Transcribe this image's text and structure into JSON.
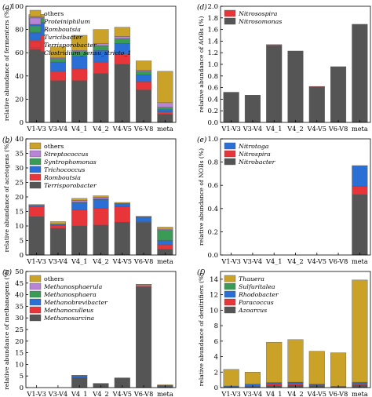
{
  "chart_data": [
    {
      "id": "a",
      "type": "bar",
      "stacked": true,
      "panel_label": "(a)",
      "ylabel": "relative abundance of fermenters (%)",
      "ylim": [
        0,
        100
      ],
      "yticks": [
        0,
        20,
        40,
        60,
        80,
        100
      ],
      "categories": [
        "V1-V3",
        "V3-V4",
        "V4_1",
        "V4_2",
        "V4-V5",
        "V6-V8",
        "meta"
      ],
      "series": [
        {
          "name": "Clostridium_sensu_stricto_1",
          "italic": true,
          "color": "#555555",
          "values": [
            61,
            36,
            36,
            42,
            50,
            28,
            7
          ]
        },
        {
          "name": "Terrisporobacter",
          "italic": true,
          "color": "#e8353a",
          "values": [
            14,
            8,
            10,
            10,
            9,
            7,
            2
          ]
        },
        {
          "name": "Turicibacter",
          "italic": true,
          "color": "#2a6fd6",
          "values": [
            11,
            8,
            11,
            10,
            9,
            6,
            2
          ]
        },
        {
          "name": "Romboutsia",
          "italic": true,
          "color": "#3a9b57",
          "values": [
            4,
            3,
            4,
            4,
            4,
            3,
            2
          ]
        },
        {
          "name": "Proteiniphilum",
          "italic": true,
          "color": "#b784d6",
          "values": [
            1,
            1,
            1,
            2,
            2,
            1,
            4
          ]
        },
        {
          "name": "others",
          "italic": false,
          "color": "#c9a227",
          "values": [
            2,
            9,
            13,
            12,
            8,
            8,
            27
          ]
        }
      ],
      "legend_position": "top-left"
    },
    {
      "id": "b",
      "type": "bar",
      "stacked": true,
      "panel_label": "(b)",
      "ylabel": "relative abundance of acetogens (%)",
      "ylim": [
        0,
        40
      ],
      "yticks": [
        0,
        5,
        10,
        15,
        20,
        25,
        30,
        35,
        40
      ],
      "categories": [
        "V1-V3",
        "V3-V4",
        "V4_1",
        "V4_2",
        "V4-V5",
        "V6-V8",
        "meta"
      ],
      "series": [
        {
          "name": "Terrisporobacter",
          "italic": true,
          "color": "#555555",
          "values": [
            13.2,
            9.2,
            10.0,
            10.3,
            11.3,
            11.2,
            2.0
          ]
        },
        {
          "name": "Romboutsia",
          "italic": true,
          "color": "#e8353a",
          "values": [
            3.5,
            1.0,
            5.5,
            5.8,
            5.3,
            0.2,
            1.5
          ]
        },
        {
          "name": "Trichococcus",
          "italic": true,
          "color": "#2a6fd6",
          "values": [
            0.3,
            0.3,
            2.5,
            3.0,
            1.0,
            1.7,
            1.5
          ]
        },
        {
          "name": "Syntrophomonas",
          "italic": true,
          "color": "#3a9b57",
          "values": [
            0.0,
            0.0,
            0.2,
            0.3,
            0.0,
            0.0,
            3.5
          ]
        },
        {
          "name": "Streptococcus",
          "italic": true,
          "color": "#b784d6",
          "values": [
            0.2,
            0.2,
            0.6,
            0.5,
            0.2,
            0.1,
            0.4
          ]
        },
        {
          "name": "others",
          "italic": false,
          "color": "#c9a227",
          "values": [
            0.2,
            0.8,
            0.7,
            0.5,
            0.3,
            0.1,
            0.7
          ]
        }
      ],
      "legend_position": "top-left"
    },
    {
      "id": "c",
      "type": "bar",
      "stacked": true,
      "panel_label": "(c)",
      "ylabel": "relative abundance of methanogens (%)",
      "ylim": [
        0,
        50
      ],
      "yticks": [
        0,
        5,
        10,
        15,
        20,
        25,
        30,
        35,
        40,
        45,
        50
      ],
      "categories": [
        "V1-V3",
        "V3-V4",
        "V4_1",
        "V4_2",
        "V4-V5",
        "V6-V8",
        "meta"
      ],
      "series": [
        {
          "name": "Methanosarcina",
          "italic": true,
          "color": "#555555",
          "values": [
            0.0,
            0.0,
            4.2,
            1.4,
            4.2,
            43.2,
            0.4
          ]
        },
        {
          "name": "Methanoculleus",
          "italic": true,
          "color": "#e8353a",
          "values": [
            0.0,
            0.0,
            0.1,
            0.1,
            0.0,
            0.6,
            0.1
          ]
        },
        {
          "name": "Methanobrevibacter",
          "italic": true,
          "color": "#2a6fd6",
          "values": [
            0.0,
            0.0,
            0.7,
            0.1,
            0.0,
            0.0,
            0.2
          ]
        },
        {
          "name": "Methanosphaera",
          "italic": true,
          "color": "#3a9b57",
          "values": [
            0.0,
            0.0,
            0.0,
            0.0,
            0.0,
            0.0,
            0.1
          ]
        },
        {
          "name": "Methanosphaerula",
          "italic": true,
          "color": "#b784d6",
          "values": [
            0.0,
            0.0,
            0.2,
            0.1,
            0.0,
            0.5,
            0.1
          ]
        },
        {
          "name": "others",
          "italic": false,
          "color": "#c9a227",
          "values": [
            0.0,
            0.0,
            0.1,
            0.1,
            0.0,
            0.2,
            0.3
          ]
        }
      ],
      "legend_position": "top-left"
    },
    {
      "id": "d",
      "type": "bar",
      "stacked": true,
      "panel_label": "(d)",
      "ylabel": "relative abundance of AOBs (%)",
      "ylim": [
        0,
        2.0
      ],
      "yticks": [
        0,
        0.2,
        0.4,
        0.6,
        0.8,
        1.0,
        1.2,
        1.4,
        1.6,
        1.8,
        2.0
      ],
      "categories": [
        "V1-V3",
        "V3-V4",
        "V4_1",
        "V4_2",
        "V4-V5",
        "V6-V8",
        "meta"
      ],
      "series": [
        {
          "name": "Nitrosomonas",
          "italic": true,
          "color": "#555555",
          "values": [
            0.52,
            0.47,
            1.32,
            1.23,
            0.61,
            0.96,
            1.69
          ]
        },
        {
          "name": "Nitrosospira",
          "italic": true,
          "color": "#e8353a",
          "values": [
            0.0,
            0.0,
            0.02,
            0.0,
            0.01,
            0.0,
            0.0
          ]
        }
      ],
      "legend_position": "top-left"
    },
    {
      "id": "e",
      "type": "bar",
      "stacked": true,
      "panel_label": "(e)",
      "ylabel": "relative abundance of NOBs (%)",
      "ylim": [
        0,
        1.0
      ],
      "yticks": [
        0,
        0.2,
        0.4,
        0.6,
        0.8,
        1.0
      ],
      "categories": [
        "V1-V3",
        "V3-V4",
        "V4_1",
        "V4_2",
        "V4-V5",
        "V6-V8",
        "meta"
      ],
      "series": [
        {
          "name": "Nitrobacter",
          "italic": true,
          "color": "#555555",
          "values": [
            0,
            0,
            0,
            0,
            0,
            0,
            0.52
          ]
        },
        {
          "name": "Nitrospira",
          "italic": true,
          "color": "#e8353a",
          "values": [
            0,
            0,
            0,
            0,
            0,
            0,
            0.07
          ]
        },
        {
          "name": "Nitrotoga",
          "italic": true,
          "color": "#2a6fd6",
          "values": [
            0,
            0,
            0,
            0,
            0,
            0,
            0.18
          ]
        }
      ],
      "legend_position": "top-left"
    },
    {
      "id": "f",
      "type": "bar",
      "stacked": true,
      "panel_label": "(f)",
      "ylabel": "relative abundance of denitrifiers (%)",
      "ylim": [
        0,
        15
      ],
      "yticks": [
        0,
        2,
        4,
        6,
        8,
        10,
        12,
        14
      ],
      "categories": [
        "V1-V3",
        "V3-V4",
        "V4_1",
        "V4_2",
        "V4-V5",
        "V6-V8",
        "meta"
      ],
      "series": [
        {
          "name": "Azoarcus",
          "italic": true,
          "color": "#555555",
          "values": [
            0.05,
            0.1,
            0.25,
            0.3,
            0.25,
            0.05,
            0.3
          ]
        },
        {
          "name": "Paracoccus",
          "italic": true,
          "color": "#e8353a",
          "values": [
            0.05,
            0.05,
            0.2,
            0.2,
            0.1,
            0.05,
            0.1
          ]
        },
        {
          "name": "Rhodobacter",
          "italic": true,
          "color": "#2a6fd6",
          "values": [
            0.1,
            0.3,
            0.15,
            0.15,
            0.1,
            0.05,
            0.2
          ]
        },
        {
          "name": "Sulfuritalea",
          "italic": true,
          "color": "#3a9b57",
          "values": [
            0.0,
            0.0,
            0.05,
            0.05,
            0.0,
            0.0,
            0.1
          ]
        },
        {
          "name": "Thauera",
          "italic": true,
          "color": "#c9a227",
          "values": [
            2.15,
            1.55,
            5.2,
            5.5,
            4.25,
            4.35,
            13.2
          ]
        }
      ],
      "legend_position": "top-left"
    }
  ]
}
